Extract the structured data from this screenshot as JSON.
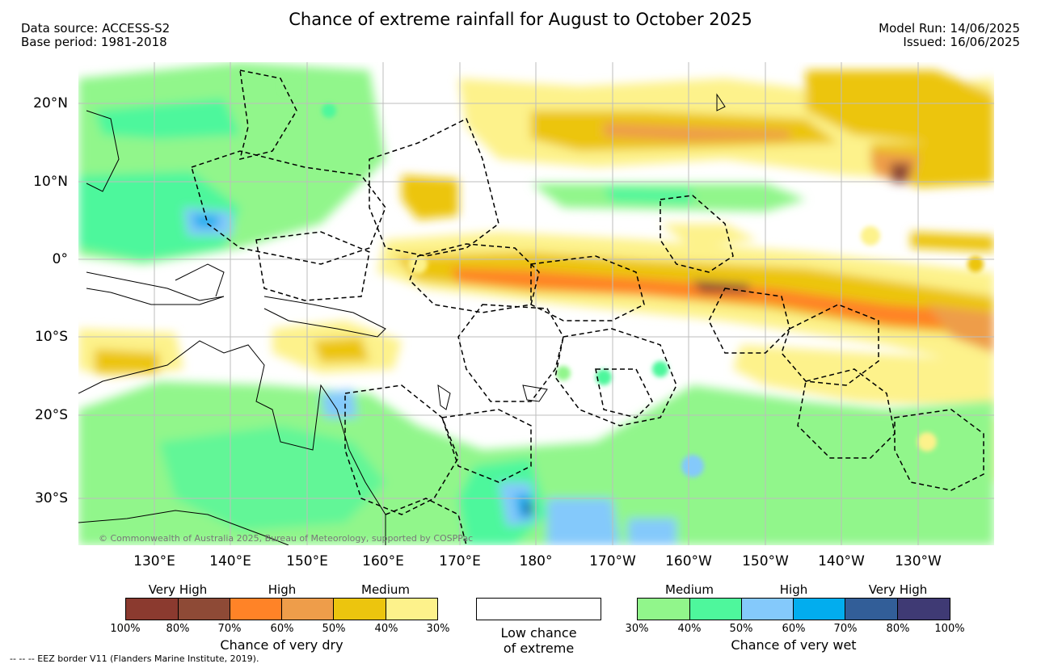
{
  "title": "Chance of extreme rainfall for August to October 2025",
  "meta_left": {
    "line1": "Data source: ACCESS-S2",
    "line2": "Base period: 1981-2018"
  },
  "meta_right": {
    "line1": "Model Run: 14/06/2025",
    "line2": "Issued: 16/06/2025"
  },
  "map": {
    "lat_labels": [
      "20°N",
      "10°N",
      "0°",
      "10°S",
      "20°S",
      "30°S"
    ],
    "lon_labels": [
      "130°E",
      "140°E",
      "150°E",
      "160°E",
      "170°E",
      "180°",
      "170°W",
      "160°W",
      "150°W",
      "140°W",
      "130°W"
    ],
    "copyright": "© Commonwealth of Australia 2025, Bureau of Meteorology, supported by COSPPac"
  },
  "legend_dry": {
    "categories": [
      "Very High",
      "High",
      "Medium"
    ],
    "colors": [
      "#8b3a2f",
      "#8e4a36",
      "#ff8327",
      "#ee9d4a",
      "#ecc50e",
      "#fdf28b"
    ],
    "ticks": [
      "100%",
      "80%",
      "70%",
      "60%",
      "50%",
      "40%",
      "30%"
    ],
    "label": "Chance of very dry"
  },
  "legend_low": {
    "label_line1": "Low chance",
    "label_line2": "of extreme"
  },
  "legend_wet": {
    "categories": [
      "Medium",
      "High",
      "Very High"
    ],
    "colors": [
      "#91f68b",
      "#4ef79c",
      "#84c9fb",
      "#02adee",
      "#325e98",
      "#3f3a74"
    ],
    "ticks": [
      "30%",
      "40%",
      "50%",
      "60%",
      "70%",
      "80%",
      "100%"
    ],
    "label": "Chance of very wet"
  },
  "footnote": "--  --  -- EEZ border V11 (Flanders Marine Institute, 2019)."
}
